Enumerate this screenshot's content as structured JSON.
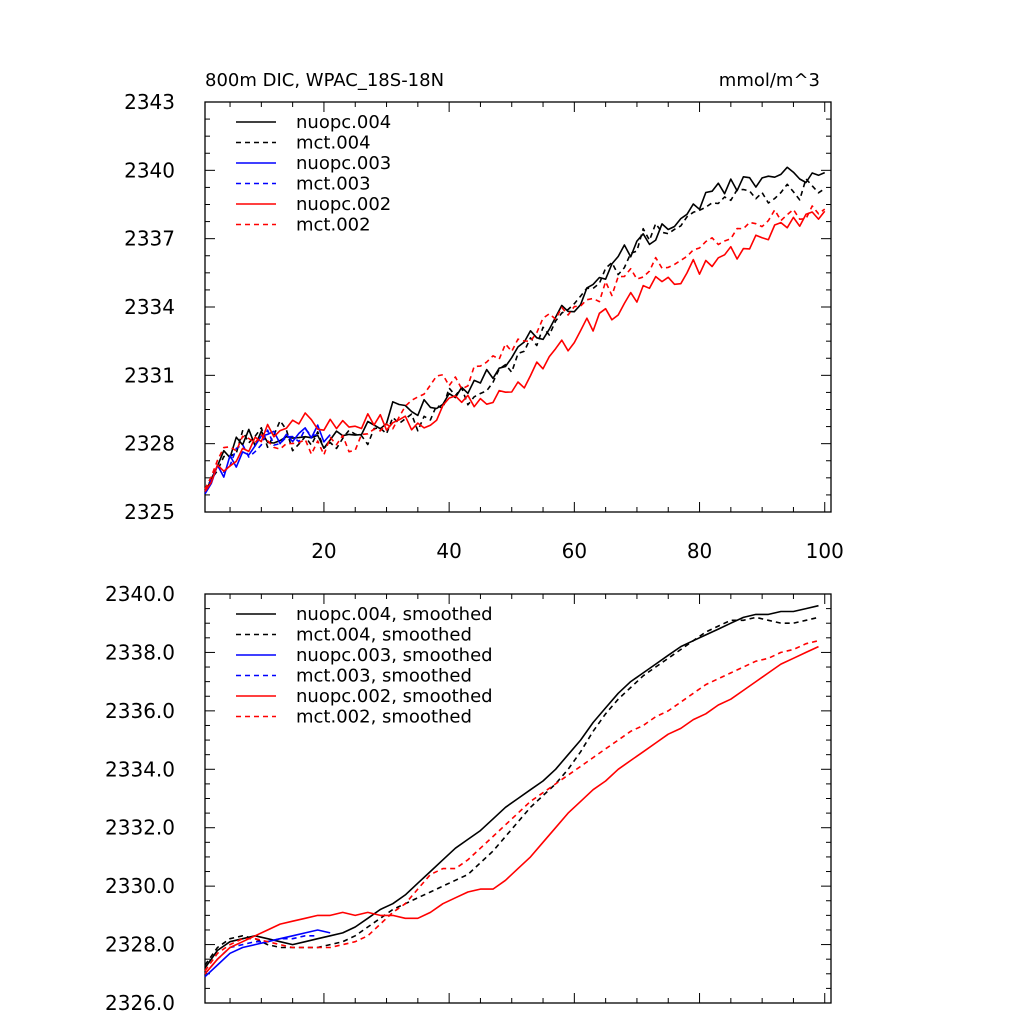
{
  "colors": {
    "black": "#000000",
    "blue": "#0000ff",
    "red": "#ff0000"
  },
  "chart_data": [
    {
      "type": "line",
      "title": "800m DIC, WPAC_18S-18N",
      "units_label": "mmol/m^3",
      "xlim": [
        1,
        101
      ],
      "ylim": [
        2325,
        2343
      ],
      "x_ticks": [
        20,
        40,
        60,
        80,
        100
      ],
      "x_tick_labels": [
        "20",
        "40",
        "60",
        "80",
        "100"
      ],
      "y_ticks": [
        2325,
        2328,
        2331,
        2334,
        2337,
        2340,
        2343
      ],
      "y_tick_labels": [
        "2325",
        "2328",
        "2331",
        "2334",
        "2337",
        "2340",
        "2343"
      ],
      "legend": [
        "nuopc.004",
        "mct.004",
        "nuopc.003",
        "mct.003",
        "nuopc.002",
        "mct.002"
      ],
      "series": [
        {
          "name": "nuopc.004",
          "color": "#000000",
          "dash": false,
          "x": [
            1,
            3,
            5,
            7,
            9,
            11,
            13,
            15,
            17,
            19,
            21,
            23,
            25,
            27,
            29,
            31,
            33,
            35,
            37,
            39,
            41,
            43,
            45,
            47,
            49,
            51,
            53,
            55,
            57,
            59,
            61,
            63,
            65,
            67,
            69,
            71,
            73,
            75,
            77,
            79,
            81,
            83,
            85,
            87,
            89,
            91,
            93,
            95,
            97,
            99,
            100
          ],
          "y": [
            2325.8,
            2327.1,
            2327.7,
            2328.3,
            2328.1,
            2328.5,
            2328.0,
            2328.6,
            2328.2,
            2328.4,
            2327.9,
            2328.5,
            2328.3,
            2328.9,
            2328.7,
            2329.4,
            2329.6,
            2329.3,
            2330.0,
            2329.7,
            2330.3,
            2330.6,
            2330.9,
            2331.3,
            2331.8,
            2332.2,
            2332.6,
            2333.0,
            2333.6,
            2334.0,
            2334.2,
            2334.9,
            2335.6,
            2336.1,
            2336.5,
            2336.8,
            2337.2,
            2337.6,
            2337.9,
            2338.3,
            2338.8,
            2339.0,
            2339.3,
            2339.5,
            2339.7,
            2339.4,
            2339.8,
            2339.6,
            2339.9,
            2340.0,
            2339.9
          ]
        },
        {
          "name": "mct.004",
          "color": "#000000",
          "dash": true,
          "x": [
            1,
            3,
            5,
            7,
            9,
            11,
            13,
            15,
            17,
            19,
            21,
            23,
            25,
            27,
            29,
            31,
            33,
            35,
            37,
            39,
            41,
            43,
            45,
            47,
            49,
            51,
            53,
            55,
            57,
            59,
            61,
            63,
            65,
            67,
            69,
            71,
            73,
            75,
            77,
            79,
            81,
            83,
            85,
            87,
            89,
            91,
            93,
            95,
            97,
            99,
            100
          ],
          "y": [
            2325.9,
            2327.0,
            2327.8,
            2328.2,
            2328.4,
            2328.1,
            2328.6,
            2327.9,
            2328.0,
            2328.2,
            2327.8,
            2328.0,
            2328.4,
            2328.1,
            2328.6,
            2329.0,
            2329.3,
            2329.0,
            2329.4,
            2329.8,
            2330.2,
            2330.0,
            2330.4,
            2330.8,
            2331.1,
            2331.6,
            2332.3,
            2332.8,
            2333.4,
            2333.9,
            2334.4,
            2335.0,
            2335.4,
            2335.8,
            2336.5,
            2337.0,
            2337.3,
            2337.6,
            2337.9,
            2338.1,
            2338.4,
            2338.6,
            2338.8,
            2339.0,
            2339.1,
            2339.0,
            2339.2,
            2338.9,
            2339.3,
            2339.4,
            2339.2
          ]
        },
        {
          "name": "nuopc.003",
          "color": "#0000ff",
          "dash": false,
          "x": [
            1,
            3,
            5,
            7,
            9,
            11,
            13,
            15,
            17,
            19,
            21
          ],
          "y": [
            2325.8,
            2326.7,
            2327.2,
            2327.6,
            2327.9,
            2328.2,
            2328.0,
            2328.4,
            2328.3,
            2328.6,
            2328.4
          ]
        },
        {
          "name": "mct.003",
          "color": "#0000ff",
          "dash": true,
          "x": [
            1,
            3,
            5,
            7,
            9,
            11,
            13,
            15,
            17,
            19
          ],
          "y": [
            2325.9,
            2326.9,
            2327.3,
            2327.7,
            2328.0,
            2328.3,
            2328.1,
            2328.3,
            2328.2,
            2328.4
          ]
        },
        {
          "name": "nuopc.002",
          "color": "#ff0000",
          "dash": false,
          "x": [
            1,
            3,
            5,
            7,
            9,
            11,
            13,
            15,
            17,
            19,
            21,
            23,
            25,
            27,
            29,
            31,
            33,
            35,
            37,
            39,
            41,
            43,
            45,
            47,
            49,
            51,
            53,
            55,
            57,
            59,
            61,
            63,
            65,
            67,
            69,
            71,
            73,
            75,
            77,
            79,
            81,
            83,
            85,
            87,
            89,
            91,
            93,
            95,
            97,
            99,
            100
          ],
          "y": [
            2325.9,
            2326.7,
            2327.3,
            2327.9,
            2328.2,
            2328.4,
            2328.6,
            2328.8,
            2328.9,
            2329.0,
            2329.0,
            2329.1,
            2329.0,
            2329.1,
            2329.0,
            2329.0,
            2328.8,
            2328.9,
            2329.1,
            2329.4,
            2329.7,
            2329.9,
            2330.0,
            2329.9,
            2330.2,
            2330.6,
            2331.0,
            2331.5,
            2332.0,
            2332.5,
            2332.9,
            2333.3,
            2333.6,
            2334.0,
            2334.3,
            2334.6,
            2334.9,
            2335.2,
            2335.4,
            2335.7,
            2335.9,
            2336.2,
            2336.4,
            2336.7,
            2337.0,
            2337.3,
            2337.6,
            2337.8,
            2338.0,
            2338.2,
            2338.2
          ]
        },
        {
          "name": "mct.002",
          "color": "#ff0000",
          "dash": true,
          "x": [
            1,
            3,
            5,
            7,
            9,
            11,
            13,
            15,
            17,
            19,
            21,
            23,
            25,
            27,
            29,
            31,
            33,
            35,
            37,
            39,
            41,
            43,
            45,
            47,
            49,
            51,
            53,
            55,
            57,
            59,
            61,
            63,
            65,
            67,
            69,
            71,
            73,
            75,
            77,
            79,
            81,
            83,
            85,
            87,
            89,
            91,
            93,
            95,
            97,
            99,
            100
          ],
          "y": [
            2326.0,
            2327.1,
            2327.7,
            2328.1,
            2328.2,
            2328.1,
            2328.0,
            2327.9,
            2327.9,
            2327.8,
            2327.9,
            2328.0,
            2328.1,
            2328.3,
            2328.7,
            2329.1,
            2329.5,
            2329.9,
            2330.4,
            2330.7,
            2330.7,
            2330.9,
            2331.3,
            2331.7,
            2332.1,
            2332.5,
            2332.9,
            2333.2,
            2333.5,
            2333.8,
            2334.1,
            2334.4,
            2334.7,
            2335.0,
            2335.3,
            2335.5,
            2335.8,
            2336.0,
            2336.3,
            2336.6,
            2336.9,
            2337.1,
            2337.3,
            2337.5,
            2337.7,
            2337.8,
            2338.0,
            2338.1,
            2338.3,
            2338.4,
            2338.3
          ]
        }
      ],
      "series_description": "monthly values; plotted with deterministic month-to-month jitter around the smoothed trends"
    },
    {
      "type": "line",
      "title": "",
      "xlim": [
        1,
        101
      ],
      "ylim": [
        2326.0,
        2340.0
      ],
      "x_ticks": [
        20,
        40,
        60,
        80,
        100
      ],
      "x_tick_labels": [],
      "y_ticks": [
        2326.0,
        2328.0,
        2330.0,
        2332.0,
        2334.0,
        2336.0,
        2338.0,
        2340.0
      ],
      "y_tick_labels": [
        "2326.0",
        "2328.0",
        "2330.0",
        "2332.0",
        "2334.0",
        "2336.0",
        "2338.0",
        "2340.0"
      ],
      "legend": [
        "nuopc.004, smoothed",
        "mct.004, smoothed",
        "nuopc.003, smoothed",
        "mct.003, smoothed",
        "nuopc.002, smoothed",
        "mct.002, smoothed"
      ],
      "series": [
        {
          "name": "nuopc.004, smoothed",
          "color": "#000000",
          "dash": false,
          "x": [
            1,
            3,
            5,
            7,
            9,
            11,
            13,
            15,
            17,
            19,
            21,
            23,
            25,
            27,
            29,
            31,
            33,
            35,
            37,
            39,
            41,
            43,
            45,
            47,
            49,
            51,
            53,
            55,
            57,
            59,
            61,
            63,
            65,
            67,
            69,
            71,
            73,
            75,
            77,
            79,
            81,
            83,
            85,
            87,
            89,
            91,
            93,
            95,
            97,
            99
          ],
          "y": [
            2327.2,
            2327.8,
            2328.1,
            2328.2,
            2328.3,
            2328.2,
            2328.1,
            2328.0,
            2328.1,
            2328.2,
            2328.3,
            2328.4,
            2328.6,
            2328.9,
            2329.2,
            2329.4,
            2329.7,
            2330.1,
            2330.5,
            2330.9,
            2331.3,
            2331.6,
            2331.9,
            2332.3,
            2332.7,
            2333.0,
            2333.3,
            2333.6,
            2334.0,
            2334.5,
            2335.0,
            2335.6,
            2336.1,
            2336.6,
            2337.0,
            2337.3,
            2337.6,
            2337.9,
            2338.2,
            2338.4,
            2338.6,
            2338.8,
            2339.0,
            2339.2,
            2339.3,
            2339.3,
            2339.4,
            2339.4,
            2339.5,
            2339.6
          ]
        },
        {
          "name": "mct.004, smoothed",
          "color": "#000000",
          "dash": true,
          "x": [
            1,
            3,
            5,
            7,
            9,
            11,
            13,
            15,
            17,
            19,
            21,
            23,
            25,
            27,
            29,
            31,
            33,
            35,
            37,
            39,
            41,
            43,
            45,
            47,
            49,
            51,
            53,
            55,
            57,
            59,
            61,
            63,
            65,
            67,
            69,
            71,
            73,
            75,
            77,
            79,
            81,
            83,
            85,
            87,
            89,
            91,
            93,
            95,
            97,
            99
          ],
          "y": [
            2327.3,
            2327.9,
            2328.2,
            2328.3,
            2328.2,
            2328.0,
            2327.9,
            2327.9,
            2327.9,
            2327.9,
            2328.0,
            2328.1,
            2328.3,
            2328.6,
            2328.9,
            2329.2,
            2329.4,
            2329.6,
            2329.8,
            2330.0,
            2330.2,
            2330.4,
            2330.8,
            2331.2,
            2331.7,
            2332.2,
            2332.7,
            2333.1,
            2333.5,
            2334.0,
            2334.6,
            2335.3,
            2335.9,
            2336.4,
            2336.8,
            2337.2,
            2337.5,
            2337.8,
            2338.1,
            2338.4,
            2338.7,
            2338.9,
            2339.1,
            2339.1,
            2339.2,
            2339.1,
            2339.0,
            2339.0,
            2339.1,
            2339.2
          ]
        },
        {
          "name": "nuopc.003, smoothed",
          "color": "#0000ff",
          "dash": false,
          "x": [
            1,
            3,
            5,
            7,
            9,
            11,
            13,
            15,
            17,
            19,
            21
          ],
          "y": [
            2326.9,
            2327.3,
            2327.7,
            2327.9,
            2328.0,
            2328.1,
            2328.2,
            2328.3,
            2328.4,
            2328.5,
            2328.4
          ]
        },
        {
          "name": "mct.003, smoothed",
          "color": "#0000ff",
          "dash": true,
          "x": [
            1,
            3,
            5,
            7,
            9,
            11,
            13,
            15,
            17,
            19
          ],
          "y": [
            2327.0,
            2327.5,
            2327.9,
            2328.0,
            2328.1,
            2328.1,
            2328.2,
            2328.2,
            2328.3,
            2328.3
          ]
        },
        {
          "name": "nuopc.002, smoothed",
          "color": "#ff0000",
          "dash": false,
          "x": [
            1,
            3,
            5,
            7,
            9,
            11,
            13,
            15,
            17,
            19,
            21,
            23,
            25,
            27,
            29,
            31,
            33,
            35,
            37,
            39,
            41,
            43,
            45,
            47,
            49,
            51,
            53,
            55,
            57,
            59,
            61,
            63,
            65,
            67,
            69,
            71,
            73,
            75,
            77,
            79,
            81,
            83,
            85,
            87,
            89,
            91,
            93,
            95,
            97,
            99
          ],
          "y": [
            2327.0,
            2327.5,
            2327.9,
            2328.1,
            2328.3,
            2328.5,
            2328.7,
            2328.8,
            2328.9,
            2329.0,
            2329.0,
            2329.1,
            2329.0,
            2329.1,
            2329.0,
            2329.0,
            2328.9,
            2328.9,
            2329.1,
            2329.4,
            2329.6,
            2329.8,
            2329.9,
            2329.9,
            2330.2,
            2330.6,
            2331.0,
            2331.5,
            2332.0,
            2332.5,
            2332.9,
            2333.3,
            2333.6,
            2334.0,
            2334.3,
            2334.6,
            2334.9,
            2335.2,
            2335.4,
            2335.7,
            2335.9,
            2336.2,
            2336.4,
            2336.7,
            2337.0,
            2337.3,
            2337.6,
            2337.8,
            2338.0,
            2338.2
          ]
        },
        {
          "name": "mct.002, smoothed",
          "color": "#ff0000",
          "dash": true,
          "x": [
            1,
            3,
            5,
            7,
            9,
            11,
            13,
            15,
            17,
            19,
            21,
            23,
            25,
            27,
            29,
            31,
            33,
            35,
            37,
            39,
            41,
            43,
            45,
            47,
            49,
            51,
            53,
            55,
            57,
            59,
            61,
            63,
            65,
            67,
            69,
            71,
            73,
            75,
            77,
            79,
            81,
            83,
            85,
            87,
            89,
            91,
            93,
            95,
            97,
            99
          ],
          "y": [
            2327.1,
            2327.7,
            2328.0,
            2328.2,
            2328.2,
            2328.1,
            2328.0,
            2327.9,
            2327.9,
            2327.9,
            2327.9,
            2328.0,
            2328.1,
            2328.3,
            2328.7,
            2329.1,
            2329.4,
            2329.9,
            2330.4,
            2330.6,
            2330.6,
            2330.9,
            2331.3,
            2331.7,
            2332.1,
            2332.5,
            2332.9,
            2333.2,
            2333.5,
            2333.8,
            2334.1,
            2334.4,
            2334.7,
            2335.0,
            2335.3,
            2335.5,
            2335.8,
            2336.0,
            2336.3,
            2336.6,
            2336.9,
            2337.1,
            2337.3,
            2337.5,
            2337.7,
            2337.8,
            2338.0,
            2338.1,
            2338.3,
            2338.4
          ]
        }
      ]
    }
  ]
}
